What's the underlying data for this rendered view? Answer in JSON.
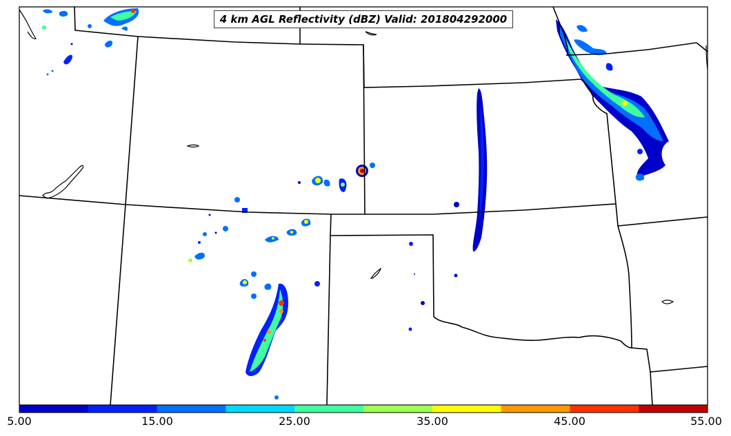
{
  "map": {
    "title": "4 km AGL Reflectivity (dBZ) Valid: 201804292000",
    "field": "reflectivity"
  },
  "colorbar": {
    "min": 5.0,
    "max": 55.0,
    "interval": 5.0,
    "colors": [
      "#0000c8",
      "#0020ff",
      "#0070ff",
      "#00d8ff",
      "#40ffa0",
      "#a0ff50",
      "#ffff00",
      "#ff9800",
      "#ff3000",
      "#c00000"
    ],
    "tick_labels": [
      "5.00",
      "15.00",
      "25.00",
      "35.00",
      "45.00",
      "55.00"
    ]
  },
  "colors": {
    "border": "#000000",
    "background": "#ffffff"
  }
}
